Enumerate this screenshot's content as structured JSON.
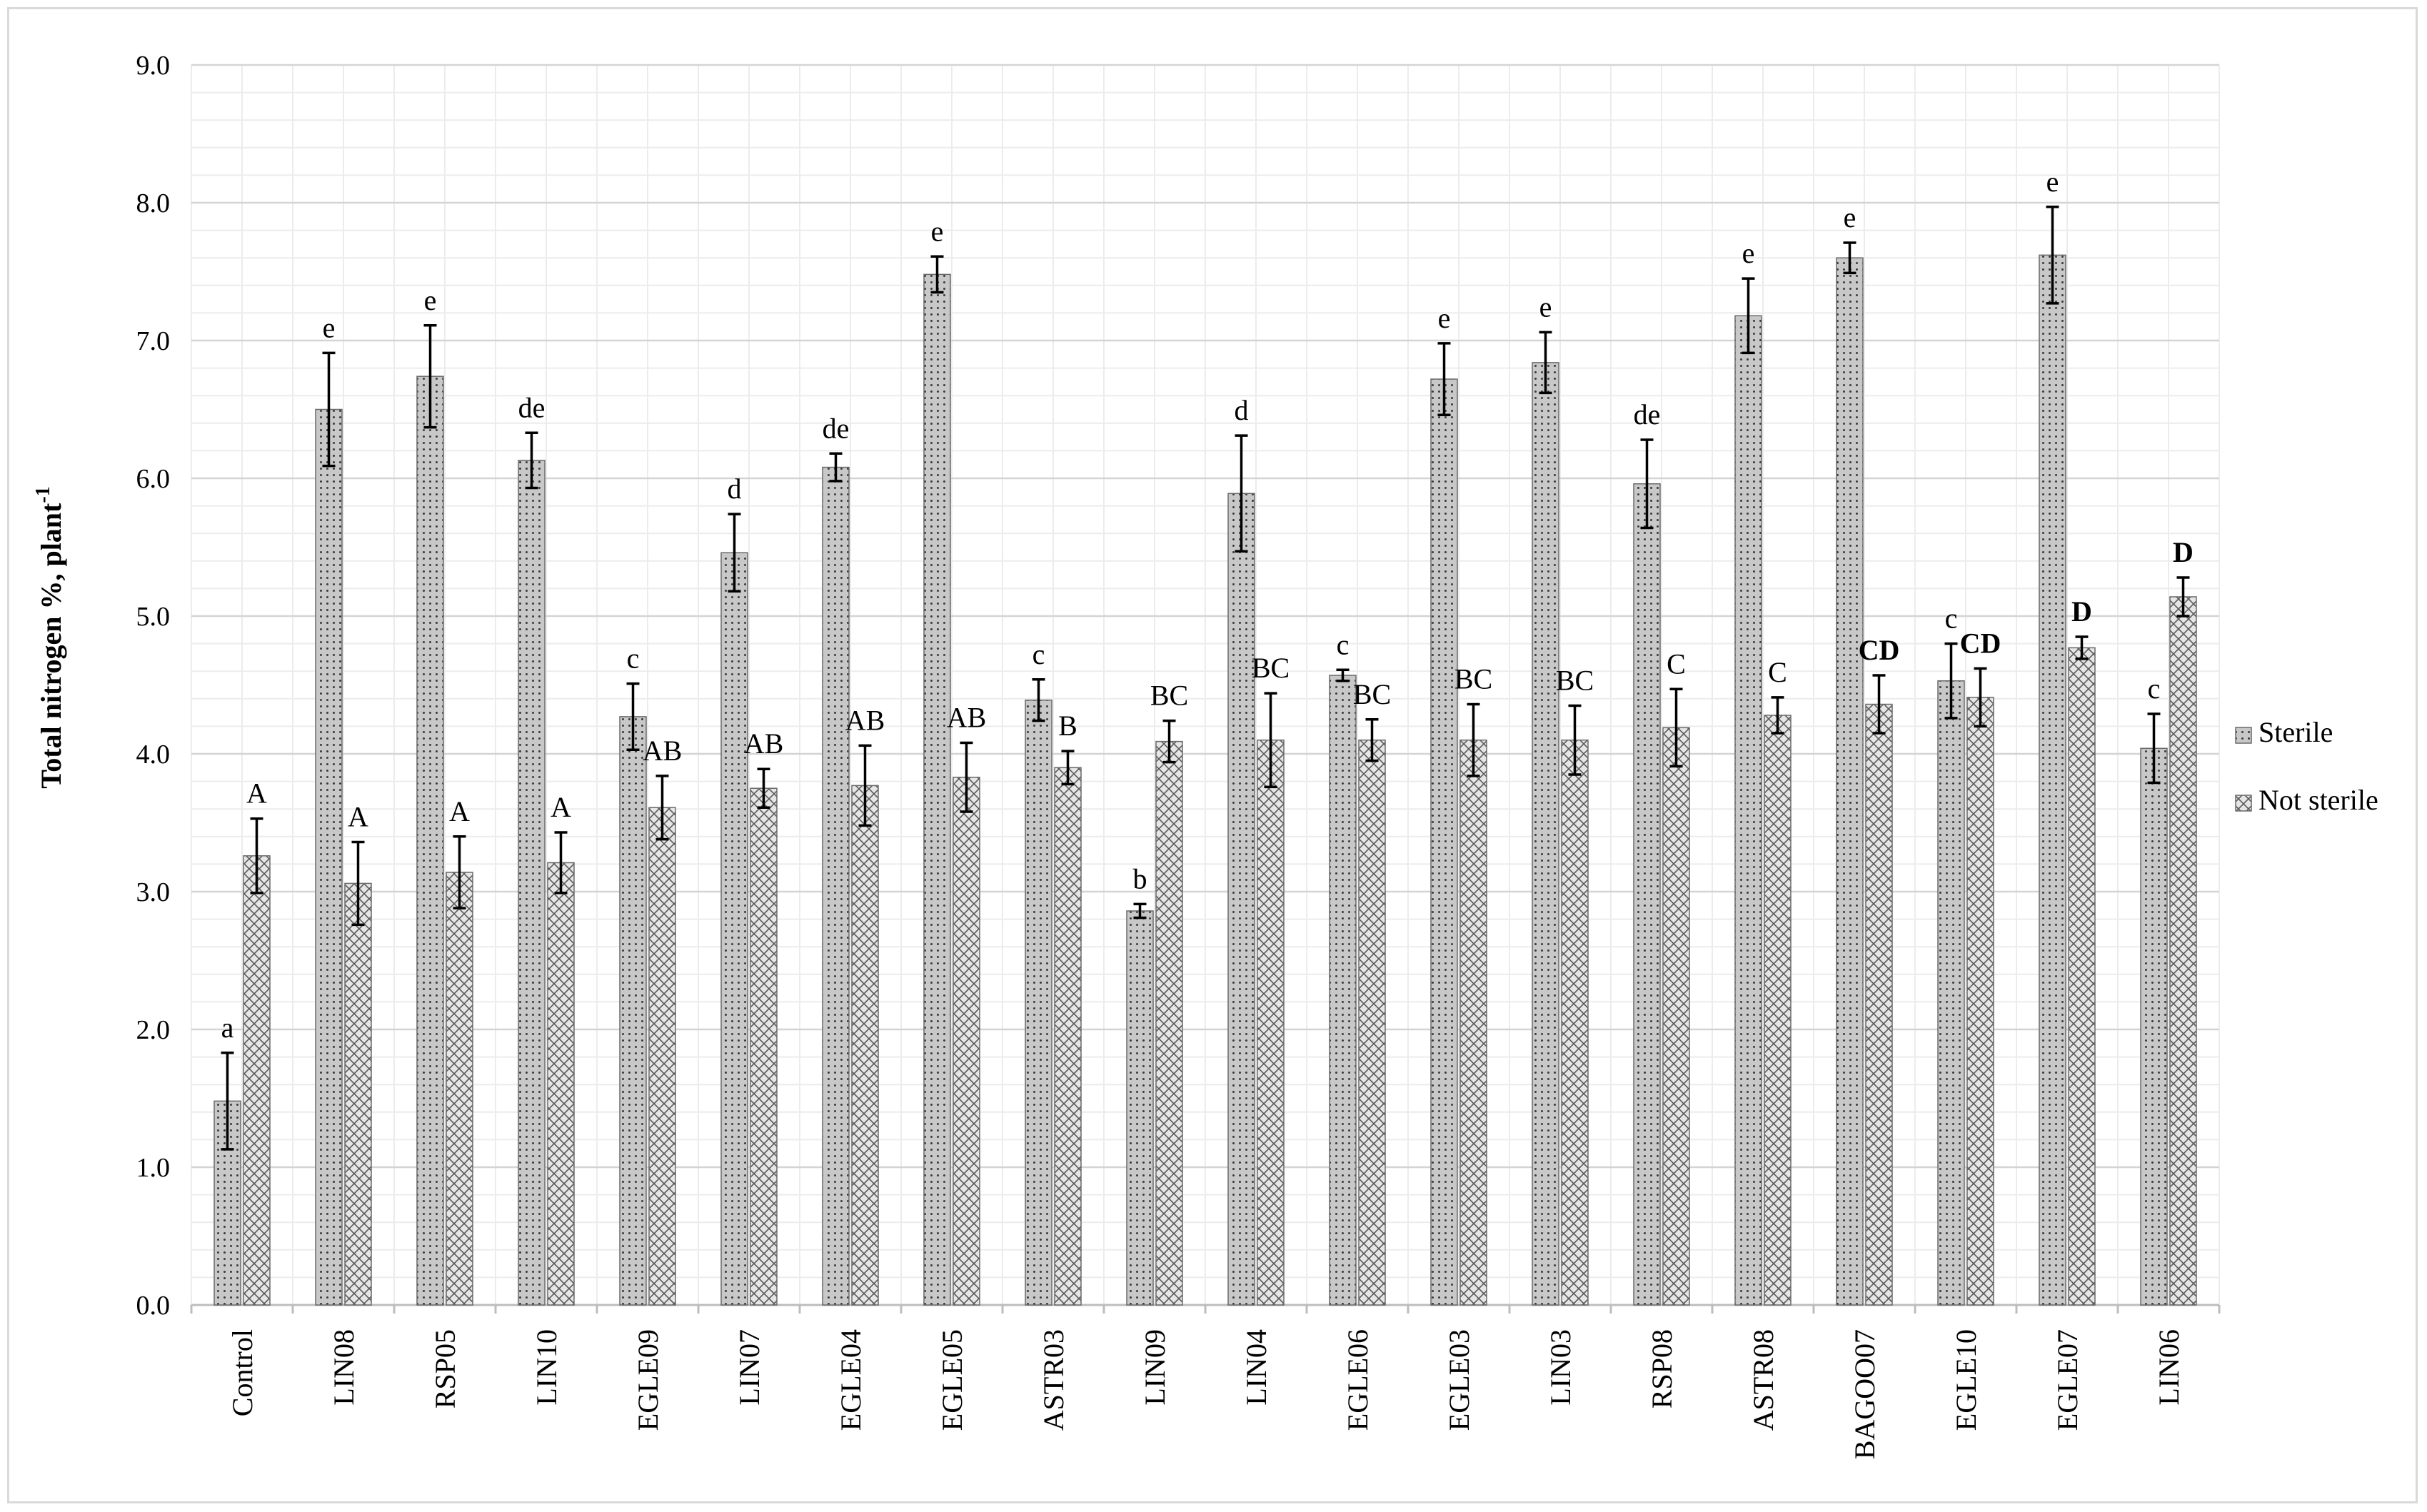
{
  "chart_data": {
    "type": "bar",
    "title": "",
    "xlabel": "",
    "ylabel": "Total nitrogen %, plant",
    "ylabel_superscript": "-1",
    "ylim": [
      0,
      9
    ],
    "yticks": [
      "0.0",
      "1.0",
      "2.0",
      "3.0",
      "4.0",
      "5.0",
      "6.0",
      "7.0",
      "8.0",
      "9.0"
    ],
    "grid": true,
    "legend_position": "right",
    "categories": [
      "Control",
      "LIN08",
      "RSP05",
      "LIN10",
      "EGLE09",
      "LIN07",
      "EGLE04",
      "EGLE05",
      "ASTR03",
      "LIN09",
      "LIN04",
      "EGLE06",
      "EGLE03",
      "LIN03",
      "RSP08",
      "ASTR08",
      "BAGOO07",
      "EGLE10",
      "EGLE07",
      "LIN06"
    ],
    "series": [
      {
        "name": "Sterile",
        "pattern": "dots",
        "color": "#c8c8c8",
        "values": [
          1.48,
          6.5,
          6.74,
          6.13,
          4.27,
          5.46,
          6.08,
          7.48,
          4.39,
          2.86,
          5.89,
          4.57,
          6.72,
          6.84,
          5.96,
          7.18,
          7.6,
          4.53,
          7.62,
          4.04
        ],
        "errors": [
          0.35,
          0.41,
          0.37,
          0.2,
          0.24,
          0.28,
          0.1,
          0.13,
          0.15,
          0.05,
          0.42,
          0.04,
          0.26,
          0.22,
          0.32,
          0.27,
          0.11,
          0.27,
          0.35,
          0.25
        ],
        "letters": [
          "a",
          "e",
          "e",
          "de",
          "c",
          "d",
          "de",
          "e",
          "c",
          "b",
          "d",
          "c",
          "e",
          "e",
          "de",
          "e",
          "e",
          "c",
          "e",
          "c"
        ],
        "letters_bold": [
          false,
          false,
          false,
          false,
          false,
          false,
          false,
          false,
          false,
          false,
          false,
          false,
          false,
          false,
          false,
          false,
          false,
          false,
          false,
          false
        ]
      },
      {
        "name": "Not sterile",
        "pattern": "crosshatch",
        "color": "#e4e4e4",
        "values": [
          3.26,
          3.06,
          3.14,
          3.21,
          3.61,
          3.75,
          3.77,
          3.83,
          3.9,
          4.09,
          4.1,
          4.1,
          4.1,
          4.1,
          4.19,
          4.28,
          4.36,
          4.41,
          4.77,
          5.14
        ],
        "errors": [
          0.27,
          0.3,
          0.26,
          0.22,
          0.23,
          0.14,
          0.29,
          0.25,
          0.12,
          0.15,
          0.34,
          0.15,
          0.26,
          0.25,
          0.28,
          0.13,
          0.21,
          0.21,
          0.08,
          0.14
        ],
        "letters": [
          "A",
          "A",
          "A",
          "A",
          "AB",
          "AB",
          "AB",
          "AB",
          "B",
          "BC",
          "BC",
          "BC",
          "BC",
          "BC",
          "C",
          "C",
          "CD",
          "CD",
          "D",
          "D"
        ],
        "letters_bold": [
          false,
          false,
          false,
          false,
          false,
          false,
          false,
          false,
          false,
          false,
          false,
          false,
          false,
          false,
          false,
          false,
          true,
          true,
          true,
          true
        ]
      }
    ]
  }
}
